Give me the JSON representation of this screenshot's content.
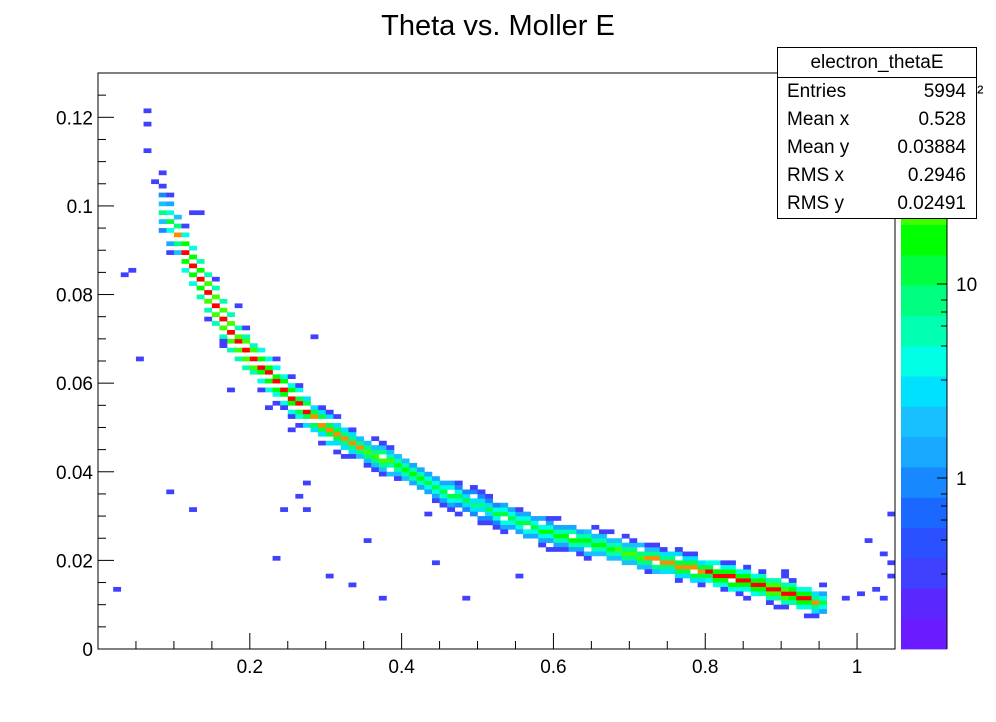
{
  "chart_data": {
    "type": "heatmap",
    "title": "Theta vs. Moller E",
    "xlabel": "",
    "ylabel": "",
    "xlim": [
      0.0,
      1.05
    ],
    "ylim": [
      0.0,
      0.13
    ],
    "x_ticks": [
      "0.2",
      "0.4",
      "0.6",
      "0.8",
      "1"
    ],
    "y_ticks": [
      "0",
      "0.02",
      "0.04",
      "0.06",
      "0.08",
      "0.1",
      "0.12"
    ],
    "palette_ticks": [
      "1",
      "10",
      "10²"
    ],
    "z_scale": "log",
    "bins": {
      "x": 105,
      "y": 130,
      "x_width": 0.01,
      "y_width": 0.001
    },
    "z_palette": [
      "#6a1bff",
      "#5a28ff",
      "#4040ff",
      "#2a50ff",
      "#1a68ff",
      "#1888ff",
      "#18a8ff",
      "#18c0ff",
      "#00e0ff",
      "#00ffe4",
      "#00ffb0",
      "#00ff80",
      "#00ff40",
      "#00ff00",
      "#40ff00",
      "#70ff00",
      "#a0ff00",
      "#d0ff00",
      "#ffff00"
    ],
    "ridge": [
      {
        "x": 0.085,
        "y": 0.0985,
        "z": 8
      },
      {
        "x": 0.1,
        "y": 0.095,
        "z": 15
      },
      {
        "x": 0.12,
        "y": 0.088,
        "z": 35
      },
      {
        "x": 0.15,
        "y": 0.079,
        "z": 40
      },
      {
        "x": 0.18,
        "y": 0.07,
        "z": 45
      },
      {
        "x": 0.22,
        "y": 0.063,
        "z": 35
      },
      {
        "x": 0.26,
        "y": 0.056,
        "z": 30
      },
      {
        "x": 0.3,
        "y": 0.05,
        "z": 25
      },
      {
        "x": 0.35,
        "y": 0.045,
        "z": 20
      },
      {
        "x": 0.4,
        "y": 0.041,
        "z": 16
      },
      {
        "x": 0.45,
        "y": 0.036,
        "z": 12
      },
      {
        "x": 0.5,
        "y": 0.0325,
        "z": 10
      },
      {
        "x": 0.55,
        "y": 0.029,
        "z": 12
      },
      {
        "x": 0.6,
        "y": 0.026,
        "z": 14
      },
      {
        "x": 0.65,
        "y": 0.024,
        "z": 16
      },
      {
        "x": 0.7,
        "y": 0.0215,
        "z": 18
      },
      {
        "x": 0.75,
        "y": 0.0195,
        "z": 22
      },
      {
        "x": 0.8,
        "y": 0.0175,
        "z": 28
      },
      {
        "x": 0.85,
        "y": 0.0155,
        "z": 35
      },
      {
        "x": 0.9,
        "y": 0.013,
        "z": 40
      },
      {
        "x": 0.93,
        "y": 0.0115,
        "z": 35
      },
      {
        "x": 0.96,
        "y": 0.01,
        "z": 8
      }
    ],
    "outliers": [
      [
        0.065,
        0.121
      ],
      [
        0.065,
        0.119
      ],
      [
        0.068,
        0.112
      ],
      [
        0.075,
        0.105
      ],
      [
        0.085,
        0.107
      ],
      [
        0.095,
        0.098
      ],
      [
        0.128,
        0.098
      ],
      [
        0.135,
        0.098
      ],
      [
        0.03,
        0.084
      ],
      [
        0.04,
        0.086
      ],
      [
        0.055,
        0.065
      ],
      [
        0.165,
        0.069
      ],
      [
        0.18,
        0.077
      ],
      [
        0.28,
        0.07
      ],
      [
        0.3,
        0.053
      ],
      [
        0.21,
        0.058
      ],
      [
        0.175,
        0.058
      ],
      [
        0.22,
        0.054
      ],
      [
        0.31,
        0.044
      ],
      [
        0.25,
        0.049
      ],
      [
        0.095,
        0.035
      ],
      [
        0.12,
        0.031
      ],
      [
        0.245,
        0.031
      ],
      [
        0.265,
        0.034
      ],
      [
        0.27,
        0.031
      ],
      [
        0.275,
        0.037
      ],
      [
        0.355,
        0.024
      ],
      [
        0.23,
        0.02
      ],
      [
        0.44,
        0.019
      ],
      [
        0.55,
        0.016
      ],
      [
        0.3,
        0.016
      ],
      [
        0.33,
        0.014
      ],
      [
        0.37,
        0.011
      ],
      [
        0.48,
        0.011
      ],
      [
        0.43,
        0.03
      ],
      [
        0.505,
        0.034
      ],
      [
        0.6,
        0.024
      ],
      [
        0.655,
        0.027
      ],
      [
        0.76,
        0.022
      ],
      [
        0.82,
        0.019
      ],
      [
        0.9,
        0.017
      ],
      [
        0.915,
        0.015
      ],
      [
        0.95,
        0.014
      ],
      [
        0.98,
        0.011
      ],
      [
        1.0,
        0.012
      ],
      [
        1.02,
        0.013
      ],
      [
        1.035,
        0.011
      ],
      [
        1.04,
        0.019
      ],
      [
        1.03,
        0.021
      ],
      [
        1.04,
        0.016
      ],
      [
        1.01,
        0.024
      ],
      [
        1.04,
        0.03
      ],
      [
        1.055,
        0.072
      ],
      [
        0.02,
        0.013
      ]
    ]
  },
  "stats": {
    "name": "electron_thetaE",
    "rows": [
      {
        "label": "Entries",
        "value": "5994"
      },
      {
        "label": "Mean x",
        "value": "0.528"
      },
      {
        "label": "Mean y",
        "value": "0.03884"
      },
      {
        "label": "RMS x",
        "value": "0.2946"
      },
      {
        "label": "RMS y",
        "value": "0.02491"
      }
    ]
  }
}
